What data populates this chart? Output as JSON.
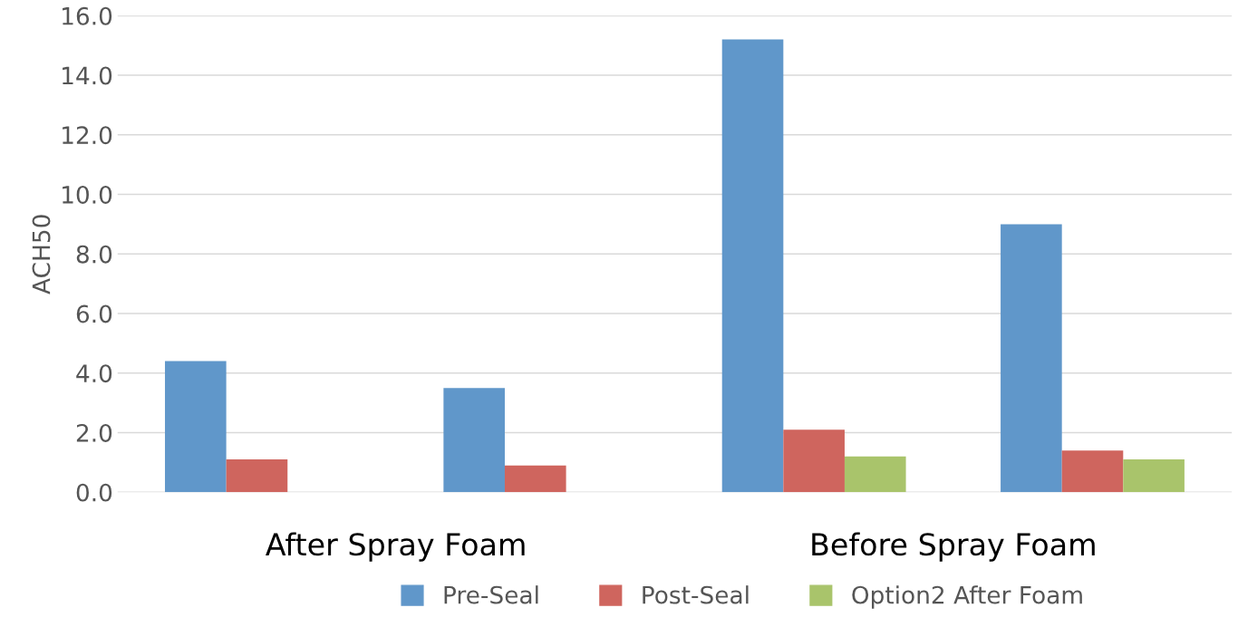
{
  "chart_data": {
    "type": "bar",
    "ylabel": "ACH50",
    "categories": [
      null,
      null,
      null,
      null
    ],
    "series": [
      {
        "name": "Pre-Seal",
        "color": "#6097ca",
        "values": [
          4.4,
          3.5,
          15.2,
          9.0
        ]
      },
      {
        "name": "Post-Seal",
        "color": "#cf655e",
        "values": [
          1.1,
          0.9,
          2.1,
          1.4
        ]
      },
      {
        "name": "Option2 After Foam",
        "color": "#a9c46b",
        "values": [
          null,
          null,
          1.2,
          1.1
        ]
      }
    ],
    "annotations": [
      "After Spray Foam",
      "Before Spray Foam"
    ],
    "ylim": [
      0,
      16
    ],
    "yticks": [
      {
        "value": 0,
        "label": "0.0"
      },
      {
        "value": 2,
        "label": "2.0"
      },
      {
        "value": 4,
        "label": "4.0"
      },
      {
        "value": 6,
        "label": "6.0"
      },
      {
        "value": 8,
        "label": "8.0"
      },
      {
        "value": 10,
        "label": "10.0"
      },
      {
        "value": 12,
        "label": "12.0"
      },
      {
        "value": 14,
        "label": "14.0"
      },
      {
        "value": 16,
        "label": "16.0"
      }
    ],
    "grid": "y",
    "legend": "bottom"
  }
}
